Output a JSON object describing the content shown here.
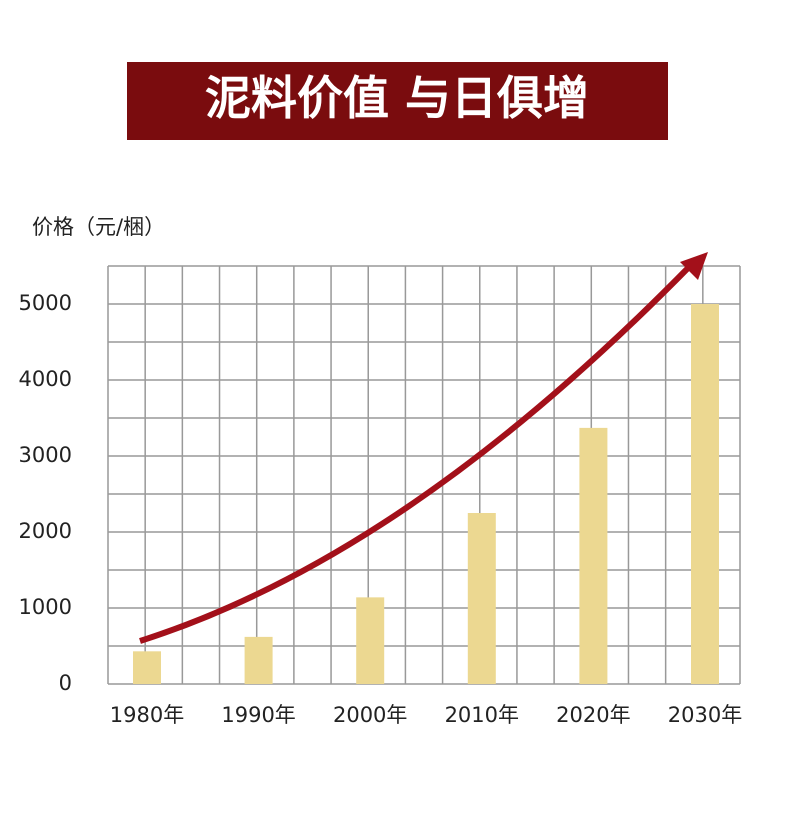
{
  "chart_data": {
    "type": "bar",
    "title": "泥料价值 与日俱增",
    "y_label": "价格（元/梱）",
    "categories": [
      "1980年",
      "1990年",
      "2000年",
      "2010年",
      "2020年",
      "2030年"
    ],
    "values": [
      430,
      620,
      1140,
      2250,
      3370,
      5000
    ],
    "color": "#ecd891",
    "ylim": [
      0,
      5500
    ],
    "yticks": [
      0,
      1000,
      2000,
      3000,
      4000,
      5000
    ],
    "minor_yticks": [
      500,
      1500,
      2500,
      3500,
      4500,
      5500
    ],
    "grid": true
  }
}
